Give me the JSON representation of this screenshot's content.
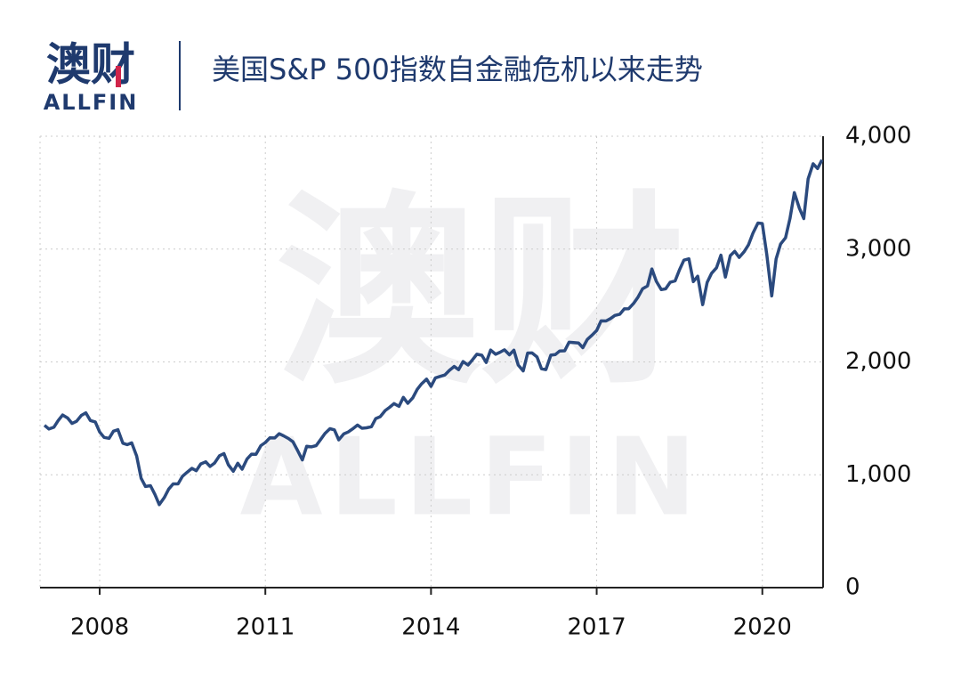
{
  "logo": {
    "cn": "澳财",
    "en": "ALLFIN"
  },
  "watermark": {
    "cn": "澳财",
    "en": "ALLFIN"
  },
  "chart_data": {
    "type": "line",
    "title": "美国S&P 500指数自金融危机以来走势",
    "x": [
      2007.0,
      2007.08,
      2007.17,
      2007.25,
      2007.33,
      2007.42,
      2007.5,
      2007.58,
      2007.67,
      2007.75,
      2007.83,
      2007.92,
      2008.0,
      2008.08,
      2008.17,
      2008.25,
      2008.33,
      2008.42,
      2008.5,
      2008.58,
      2008.67,
      2008.75,
      2008.83,
      2008.92,
      2009.0,
      2009.08,
      2009.17,
      2009.25,
      2009.33,
      2009.42,
      2009.5,
      2009.58,
      2009.67,
      2009.75,
      2009.83,
      2009.92,
      2010.0,
      2010.08,
      2010.17,
      2010.25,
      2010.33,
      2010.42,
      2010.5,
      2010.58,
      2010.67,
      2010.75,
      2010.83,
      2010.92,
      2011.0,
      2011.08,
      2011.17,
      2011.25,
      2011.33,
      2011.42,
      2011.5,
      2011.58,
      2011.67,
      2011.75,
      2011.83,
      2011.92,
      2012.0,
      2012.08,
      2012.17,
      2012.25,
      2012.33,
      2012.42,
      2012.5,
      2012.58,
      2012.67,
      2012.75,
      2012.83,
      2012.92,
      2013.0,
      2013.08,
      2013.17,
      2013.25,
      2013.33,
      2013.42,
      2013.5,
      2013.58,
      2013.67,
      2013.75,
      2013.83,
      2013.92,
      2014.0,
      2014.08,
      2014.17,
      2014.25,
      2014.33,
      2014.42,
      2014.5,
      2014.58,
      2014.67,
      2014.75,
      2014.83,
      2014.92,
      2015.0,
      2015.08,
      2015.17,
      2015.25,
      2015.33,
      2015.42,
      2015.5,
      2015.58,
      2015.67,
      2015.75,
      2015.83,
      2015.92,
      2016.0,
      2016.08,
      2016.17,
      2016.25,
      2016.33,
      2016.42,
      2016.5,
      2016.58,
      2016.67,
      2016.75,
      2016.83,
      2016.92,
      2017.0,
      2017.08,
      2017.17,
      2017.25,
      2017.33,
      2017.42,
      2017.5,
      2017.58,
      2017.67,
      2017.75,
      2017.83,
      2017.92,
      2018.0,
      2018.08,
      2018.17,
      2018.25,
      2018.33,
      2018.42,
      2018.5,
      2018.58,
      2018.67,
      2018.75,
      2018.83,
      2018.92,
      2019.0,
      2019.08,
      2019.17,
      2019.25,
      2019.33,
      2019.42,
      2019.5,
      2019.58,
      2019.67,
      2019.75,
      2019.83,
      2019.92,
      2020.0,
      2020.08,
      2020.17,
      2020.25,
      2020.33,
      2020.42,
      2020.5,
      2020.58,
      2020.67,
      2020.75,
      2020.83,
      2020.92,
      2021.0,
      2021.08
    ],
    "series": [
      {
        "color": "#2b4a7e",
        "values": [
          1438,
          1406,
          1421,
          1482,
          1530,
          1503,
          1455,
          1474,
          1527,
          1549,
          1481,
          1468,
          1379,
          1331,
          1323,
          1386,
          1400,
          1280,
          1267,
          1283,
          1165,
          969,
          896,
          903,
          826,
          735,
          798,
          873,
          919,
          919,
          987,
          1021,
          1057,
          1036,
          1096,
          1115,
          1074,
          1104,
          1169,
          1187,
          1089,
          1031,
          1102,
          1049,
          1141,
          1183,
          1181,
          1258,
          1286,
          1327,
          1326,
          1364,
          1345,
          1321,
          1292,
          1219,
          1131,
          1253,
          1247,
          1258,
          1312,
          1366,
          1408,
          1398,
          1310,
          1362,
          1379,
          1407,
          1441,
          1412,
          1416,
          1426,
          1498,
          1515,
          1569,
          1598,
          1631,
          1606,
          1686,
          1633,
          1682,
          1757,
          1806,
          1848,
          1783,
          1859,
          1872,
          1884,
          1924,
          1960,
          1931,
          2003,
          1972,
          2018,
          2068,
          2059,
          1995,
          2105,
          2068,
          2086,
          2107,
          2063,
          2104,
          1972,
          1920,
          2079,
          2080,
          2044,
          1940,
          1932,
          2060,
          2065,
          2097,
          2099,
          2174,
          2171,
          2168,
          2126,
          2199,
          2239,
          2279,
          2364,
          2363,
          2384,
          2412,
          2423,
          2470,
          2472,
          2519,
          2575,
          2648,
          2674,
          2824,
          2714,
          2641,
          2648,
          2705,
          2718,
          2816,
          2902,
          2914,
          2712,
          2760,
          2507,
          2704,
          2784,
          2834,
          2946,
          2752,
          2942,
          2980,
          2926,
          2977,
          3038,
          3141,
          3231,
          3226,
          2954,
          2585,
          2912,
          3044,
          3100,
          3271,
          3500,
          3363,
          3270,
          3622,
          3756,
          3714,
          3790
        ]
      }
    ],
    "xlim": [
      2006.92,
      2021.1
    ],
    "xticks": [
      2008,
      2011,
      2014,
      2017,
      2020
    ],
    "ylim": [
      0,
      4000
    ],
    "yticks": [
      0,
      {
        "value": 1000,
        "label": "1,000"
      },
      {
        "value": 2000,
        "label": "2,000"
      },
      {
        "value": 3000,
        "label": "3,000"
      },
      {
        "value": 4000,
        "label": "4,000"
      }
    ],
    "grid": true
  }
}
